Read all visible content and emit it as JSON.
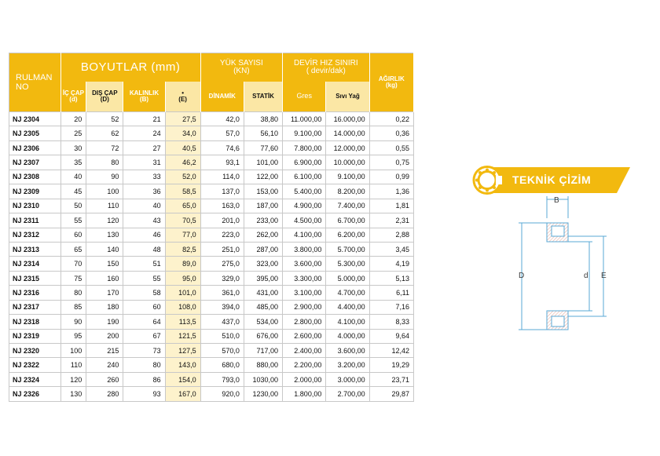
{
  "table": {
    "head": {
      "rulman": "RULMAN\nNO",
      "boyutlar": "BOYUTLAR (mm)",
      "ic_cap": "İÇ ÇAP\n(d)",
      "dis_cap": "DIŞ ÇAP\n(D)",
      "kalinlik": "KALINLIK\n(B)",
      "e": "•\n(E)",
      "yuk_sayisi": "YÜK SAYISI\n(KN)",
      "dinamik": "DİNAMİK",
      "statik": "STATİK",
      "devir": "DEVİR HIZ SINIRI\n( devir/dak)",
      "gres": "Gres",
      "sivi_yag": "Sıvı Yağ",
      "agirlik": "AĞIRLIK\n(kg)"
    },
    "rows": [
      {
        "code": "NJ 2304",
        "d": "20",
        "D": "52",
        "B": "21",
        "E": "27,5",
        "din": "42,0",
        "stat": "38,80",
        "gres": "11.000,00",
        "yag": "16.000,00",
        "kg": "0,22"
      },
      {
        "code": "NJ 2305",
        "d": "25",
        "D": "62",
        "B": "24",
        "E": "34,0",
        "din": "57,0",
        "stat": "56,10",
        "gres": "9.100,00",
        "yag": "14.000,00",
        "kg": "0,36"
      },
      {
        "code": "NJ 2306",
        "d": "30",
        "D": "72",
        "B": "27",
        "E": "40,5",
        "din": "74,6",
        "stat": "77,60",
        "gres": "7.800,00",
        "yag": "12.000,00",
        "kg": "0,55"
      },
      {
        "code": "NJ 2307",
        "d": "35",
        "D": "80",
        "B": "31",
        "E": "46,2",
        "din": "93,1",
        "stat": "101,00",
        "gres": "6.900,00",
        "yag": "10.000,00",
        "kg": "0,75"
      },
      {
        "code": "NJ 2308",
        "d": "40",
        "D": "90",
        "B": "33",
        "E": "52,0",
        "din": "114,0",
        "stat": "122,00",
        "gres": "6.100,00",
        "yag": "9.100,00",
        "kg": "0,99"
      },
      {
        "code": "NJ 2309",
        "d": "45",
        "D": "100",
        "B": "36",
        "E": "58,5",
        "din": "137,0",
        "stat": "153,00",
        "gres": "5.400,00",
        "yag": "8.200,00",
        "kg": "1,36"
      },
      {
        "code": "NJ 2310",
        "d": "50",
        "D": "110",
        "B": "40",
        "E": "65,0",
        "din": "163,0",
        "stat": "187,00",
        "gres": "4.900,00",
        "yag": "7.400,00",
        "kg": "1,81"
      },
      {
        "code": "NJ 2311",
        "d": "55",
        "D": "120",
        "B": "43",
        "E": "70,5",
        "din": "201,0",
        "stat": "233,00",
        "gres": "4.500,00",
        "yag": "6.700,00",
        "kg": "2,31"
      },
      {
        "code": "NJ 2312",
        "d": "60",
        "D": "130",
        "B": "46",
        "E": "77,0",
        "din": "223,0",
        "stat": "262,00",
        "gres": "4.100,00",
        "yag": "6.200,00",
        "kg": "2,88"
      },
      {
        "code": "NJ 2313",
        "d": "65",
        "D": "140",
        "B": "48",
        "E": "82,5",
        "din": "251,0",
        "stat": "287,00",
        "gres": "3.800,00",
        "yag": "5.700,00",
        "kg": "3,45"
      },
      {
        "code": "NJ 2314",
        "d": "70",
        "D": "150",
        "B": "51",
        "E": "89,0",
        "din": "275,0",
        "stat": "323,00",
        "gres": "3.600,00",
        "yag": "5.300,00",
        "kg": "4,19"
      },
      {
        "code": "NJ 2315",
        "d": "75",
        "D": "160",
        "B": "55",
        "E": "95,0",
        "din": "329,0",
        "stat": "395,00",
        "gres": "3.300,00",
        "yag": "5.000,00",
        "kg": "5,13"
      },
      {
        "code": "NJ 2316",
        "d": "80",
        "D": "170",
        "B": "58",
        "E": "101,0",
        "din": "361,0",
        "stat": "431,00",
        "gres": "3.100,00",
        "yag": "4.700,00",
        "kg": "6,11"
      },
      {
        "code": "NJ 2317",
        "d": "85",
        "D": "180",
        "B": "60",
        "E": "108,0",
        "din": "394,0",
        "stat": "485,00",
        "gres": "2.900,00",
        "yag": "4.400,00",
        "kg": "7,16"
      },
      {
        "code": "NJ 2318",
        "d": "90",
        "D": "190",
        "B": "64",
        "E": "113,5",
        "din": "437,0",
        "stat": "534,00",
        "gres": "2.800,00",
        "yag": "4.100,00",
        "kg": "8,33"
      },
      {
        "code": "NJ 2319",
        "d": "95",
        "D": "200",
        "B": "67",
        "E": "121,5",
        "din": "510,0",
        "stat": "676,00",
        "gres": "2.600,00",
        "yag": "4.000,00",
        "kg": "9,64"
      },
      {
        "code": "NJ 2320",
        "d": "100",
        "D": "215",
        "B": "73",
        "E": "127,5",
        "din": "570,0",
        "stat": "717,00",
        "gres": "2.400,00",
        "yag": "3.600,00",
        "kg": "12,42"
      },
      {
        "code": "NJ 2322",
        "d": "110",
        "D": "240",
        "B": "80",
        "E": "143,0",
        "din": "680,0",
        "stat": "880,00",
        "gres": "2.200,00",
        "yag": "3.200,00",
        "kg": "19,29"
      },
      {
        "code": "NJ 2324",
        "d": "120",
        "D": "260",
        "B": "86",
        "E": "154,0",
        "din": "793,0",
        "stat": "1030,00",
        "gres": "2.000,00",
        "yag": "3.000,00",
        "kg": "23,71"
      },
      {
        "code": "NJ 2326",
        "d": "130",
        "D": "280",
        "B": "93",
        "E": "167,0",
        "din": "920,0",
        "stat": "1230,00",
        "gres": "1.800,00",
        "yag": "2.700,00",
        "kg": "29,87"
      }
    ]
  },
  "teknik": {
    "title": "TEKNİK ÇİZİM",
    "labels": {
      "B": "B",
      "D": "D",
      "d": "d",
      "E": "E"
    },
    "icon": "bearing-icon"
  },
  "colors": {
    "accent": "#f2b90f",
    "accent_light": "#fbe7a5",
    "drawing_line": "#5aa9d6",
    "hatch": "#e9b0a4"
  }
}
